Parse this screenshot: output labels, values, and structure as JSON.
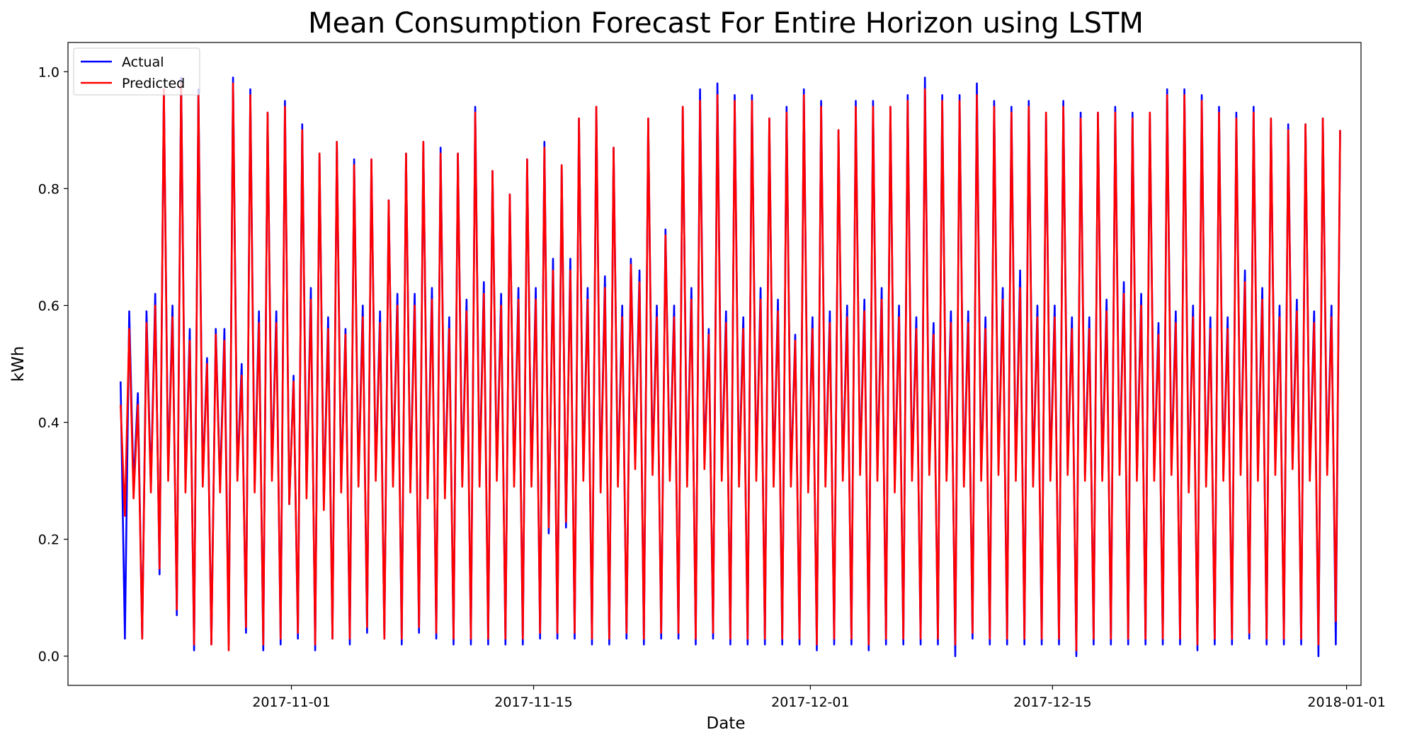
{
  "chart_data": {
    "type": "line",
    "title": "Mean Consumption Forecast For Entire Horizon using LSTM",
    "xlabel": "Date",
    "ylabel": "kWh",
    "xlim": [
      "2017-10-19T02:00",
      "2018-01-01T20:00"
    ],
    "ylim": [
      -0.05,
      1.05
    ],
    "x_ticks": [
      "2017-11-01",
      "2017-11-15",
      "2017-12-01",
      "2017-12-15",
      "2018-01-01"
    ],
    "y_ticks": [
      "0.0",
      "0.2",
      "0.4",
      "0.6",
      "0.8",
      "1.0"
    ],
    "x_start": "2017-10-22T00:00",
    "x_end": "2017-12-29T23:00",
    "legend": {
      "position": "upper-left",
      "entries": [
        "Actual",
        "Predicted"
      ]
    },
    "grid": false,
    "series": [
      {
        "name": "Actual",
        "color": "#0000ff",
        "sampling": "4 points per day at 03:00, 09:00, 15:00, 21:00",
        "values": [
          0.47,
          0.03,
          0.59,
          0.29,
          0.45,
          0.03,
          0.59,
          0.29,
          0.62,
          0.14,
          0.97,
          0.31,
          0.6,
          0.07,
          0.99,
          0.29,
          0.56,
          0.01,
          0.97,
          0.3,
          0.51,
          0.02,
          0.56,
          0.29,
          0.56,
          0.02,
          0.99,
          0.31,
          0.5,
          0.04,
          0.97,
          0.29,
          0.59,
          0.01,
          0.93,
          0.31,
          0.59,
          0.02,
          0.95,
          0.26,
          0.48,
          0.03,
          0.91,
          0.28,
          0.63,
          0.01,
          0.86,
          0.26,
          0.58,
          0.03,
          0.88,
          0.29,
          0.56,
          0.02,
          0.85,
          0.3,
          0.6,
          0.04,
          0.85,
          0.31,
          0.59,
          0.03,
          0.78,
          0.3,
          0.62,
          0.02,
          0.86,
          0.29,
          0.62,
          0.04,
          0.88,
          0.28,
          0.63,
          0.03,
          0.87,
          0.28,
          0.58,
          0.02,
          0.86,
          0.3,
          0.61,
          0.02,
          0.94,
          0.3,
          0.64,
          0.02,
          0.83,
          0.31,
          0.62,
          0.02,
          0.79,
          0.3,
          0.63,
          0.02,
          0.85,
          0.3,
          0.63,
          0.03,
          0.88,
          0.21,
          0.68,
          0.03,
          0.84,
          0.22,
          0.68,
          0.03,
          0.92,
          0.31,
          0.63,
          0.02,
          0.94,
          0.29,
          0.65,
          0.02,
          0.87,
          0.3,
          0.6,
          0.03,
          0.68,
          0.33,
          0.66,
          0.02,
          0.92,
          0.32,
          0.6,
          0.03,
          0.73,
          0.31,
          0.6,
          0.03,
          0.94,
          0.3,
          0.63,
          0.02,
          0.97,
          0.33,
          0.56,
          0.03,
          0.98,
          0.31,
          0.59,
          0.02,
          0.96,
          0.3,
          0.58,
          0.02,
          0.96,
          0.31,
          0.63,
          0.02,
          0.92,
          0.3,
          0.61,
          0.02,
          0.94,
          0.3,
          0.55,
          0.02,
          0.97,
          0.29,
          0.58,
          0.01,
          0.95,
          0.3,
          0.59,
          0.02,
          0.9,
          0.31,
          0.6,
          0.02,
          0.95,
          0.32,
          0.61,
          0.01,
          0.95,
          0.31,
          0.63,
          0.02,
          0.94,
          0.29,
          0.6,
          0.02,
          0.96,
          0.31,
          0.58,
          0.02,
          0.99,
          0.32,
          0.57,
          0.02,
          0.96,
          0.31,
          0.59,
          0.0,
          0.96,
          0.3,
          0.59,
          0.03,
          0.98,
          0.31,
          0.58,
          0.02,
          0.95,
          0.32,
          0.63,
          0.02,
          0.94,
          0.31,
          0.66,
          0.02,
          0.95,
          0.3,
          0.6,
          0.02,
          0.93,
          0.31,
          0.6,
          0.02,
          0.95,
          0.32,
          0.58,
          0.0,
          0.93,
          0.31,
          0.58,
          0.02,
          0.93,
          0.31,
          0.61,
          0.02,
          0.94,
          0.32,
          0.64,
          0.02,
          0.93,
          0.31,
          0.62,
          0.02,
          0.93,
          0.31,
          0.57,
          0.02,
          0.97,
          0.32,
          0.59,
          0.02,
          0.97,
          0.29,
          0.6,
          0.01,
          0.96,
          0.3,
          0.58,
          0.02,
          0.94,
          0.31,
          0.58,
          0.02,
          0.93,
          0.32,
          0.66,
          0.03,
          0.94,
          0.31,
          0.63,
          0.02,
          0.92,
          0.32,
          0.6,
          0.02,
          0.91,
          0.33,
          0.61,
          0.02,
          0.91,
          0.31,
          0.59,
          0.0,
          0.92,
          0.32,
          0.6,
          0.02,
          0.9
        ]
      },
      {
        "name": "Predicted",
        "color": "#ff0000",
        "sampling": "4 points per day at 03:00, 09:00, 15:00, 21:00",
        "values": [
          0.43,
          0.24,
          0.56,
          0.27,
          0.43,
          0.03,
          0.57,
          0.28,
          0.6,
          0.15,
          0.97,
          0.3,
          0.58,
          0.08,
          0.98,
          0.28,
          0.54,
          0.02,
          0.96,
          0.29,
          0.5,
          0.02,
          0.55,
          0.28,
          0.54,
          0.01,
          0.98,
          0.3,
          0.48,
          0.05,
          0.96,
          0.28,
          0.57,
          0.02,
          0.93,
          0.3,
          0.57,
          0.03,
          0.94,
          0.26,
          0.47,
          0.04,
          0.9,
          0.27,
          0.61,
          0.02,
          0.86,
          0.25,
          0.56,
          0.03,
          0.88,
          0.28,
          0.55,
          0.03,
          0.84,
          0.29,
          0.58,
          0.05,
          0.85,
          0.3,
          0.57,
          0.03,
          0.78,
          0.29,
          0.6,
          0.03,
          0.86,
          0.28,
          0.6,
          0.05,
          0.88,
          0.27,
          0.61,
          0.04,
          0.86,
          0.27,
          0.56,
          0.03,
          0.86,
          0.29,
          0.59,
          0.03,
          0.93,
          0.29,
          0.62,
          0.03,
          0.83,
          0.3,
          0.6,
          0.03,
          0.79,
          0.29,
          0.61,
          0.03,
          0.85,
          0.29,
          0.61,
          0.04,
          0.87,
          0.22,
          0.66,
          0.04,
          0.84,
          0.23,
          0.66,
          0.04,
          0.92,
          0.3,
          0.61,
          0.03,
          0.94,
          0.28,
          0.63,
          0.03,
          0.87,
          0.29,
          0.58,
          0.04,
          0.67,
          0.32,
          0.64,
          0.03,
          0.92,
          0.31,
          0.58,
          0.04,
          0.72,
          0.3,
          0.58,
          0.04,
          0.94,
          0.29,
          0.61,
          0.03,
          0.95,
          0.32,
          0.55,
          0.04,
          0.96,
          0.3,
          0.57,
          0.03,
          0.95,
          0.29,
          0.56,
          0.03,
          0.95,
          0.3,
          0.61,
          0.03,
          0.92,
          0.29,
          0.59,
          0.03,
          0.93,
          0.29,
          0.54,
          0.03,
          0.96,
          0.28,
          0.56,
          0.02,
          0.94,
          0.29,
          0.57,
          0.03,
          0.9,
          0.3,
          0.58,
          0.03,
          0.94,
          0.31,
          0.59,
          0.02,
          0.94,
          0.3,
          0.61,
          0.03,
          0.94,
          0.28,
          0.58,
          0.03,
          0.95,
          0.3,
          0.56,
          0.03,
          0.97,
          0.31,
          0.55,
          0.03,
          0.95,
          0.3,
          0.57,
          0.02,
          0.95,
          0.29,
          0.57,
          0.04,
          0.96,
          0.3,
          0.56,
          0.03,
          0.94,
          0.31,
          0.61,
          0.03,
          0.93,
          0.3,
          0.63,
          0.03,
          0.94,
          0.29,
          0.58,
          0.03,
          0.93,
          0.3,
          0.58,
          0.03,
          0.94,
          0.31,
          0.56,
          0.01,
          0.92,
          0.3,
          0.56,
          0.03,
          0.93,
          0.3,
          0.59,
          0.03,
          0.93,
          0.31,
          0.62,
          0.03,
          0.92,
          0.3,
          0.6,
          0.03,
          0.93,
          0.3,
          0.55,
          0.03,
          0.96,
          0.31,
          0.57,
          0.03,
          0.96,
          0.28,
          0.58,
          0.02,
          0.95,
          0.29,
          0.56,
          0.03,
          0.93,
          0.3,
          0.56,
          0.03,
          0.92,
          0.31,
          0.64,
          0.04,
          0.93,
          0.3,
          0.61,
          0.03,
          0.92,
          0.31,
          0.58,
          0.03,
          0.9,
          0.32,
          0.59,
          0.03,
          0.91,
          0.3,
          0.57,
          0.02,
          0.92,
          0.31,
          0.58,
          0.06,
          0.9
        ]
      }
    ]
  }
}
